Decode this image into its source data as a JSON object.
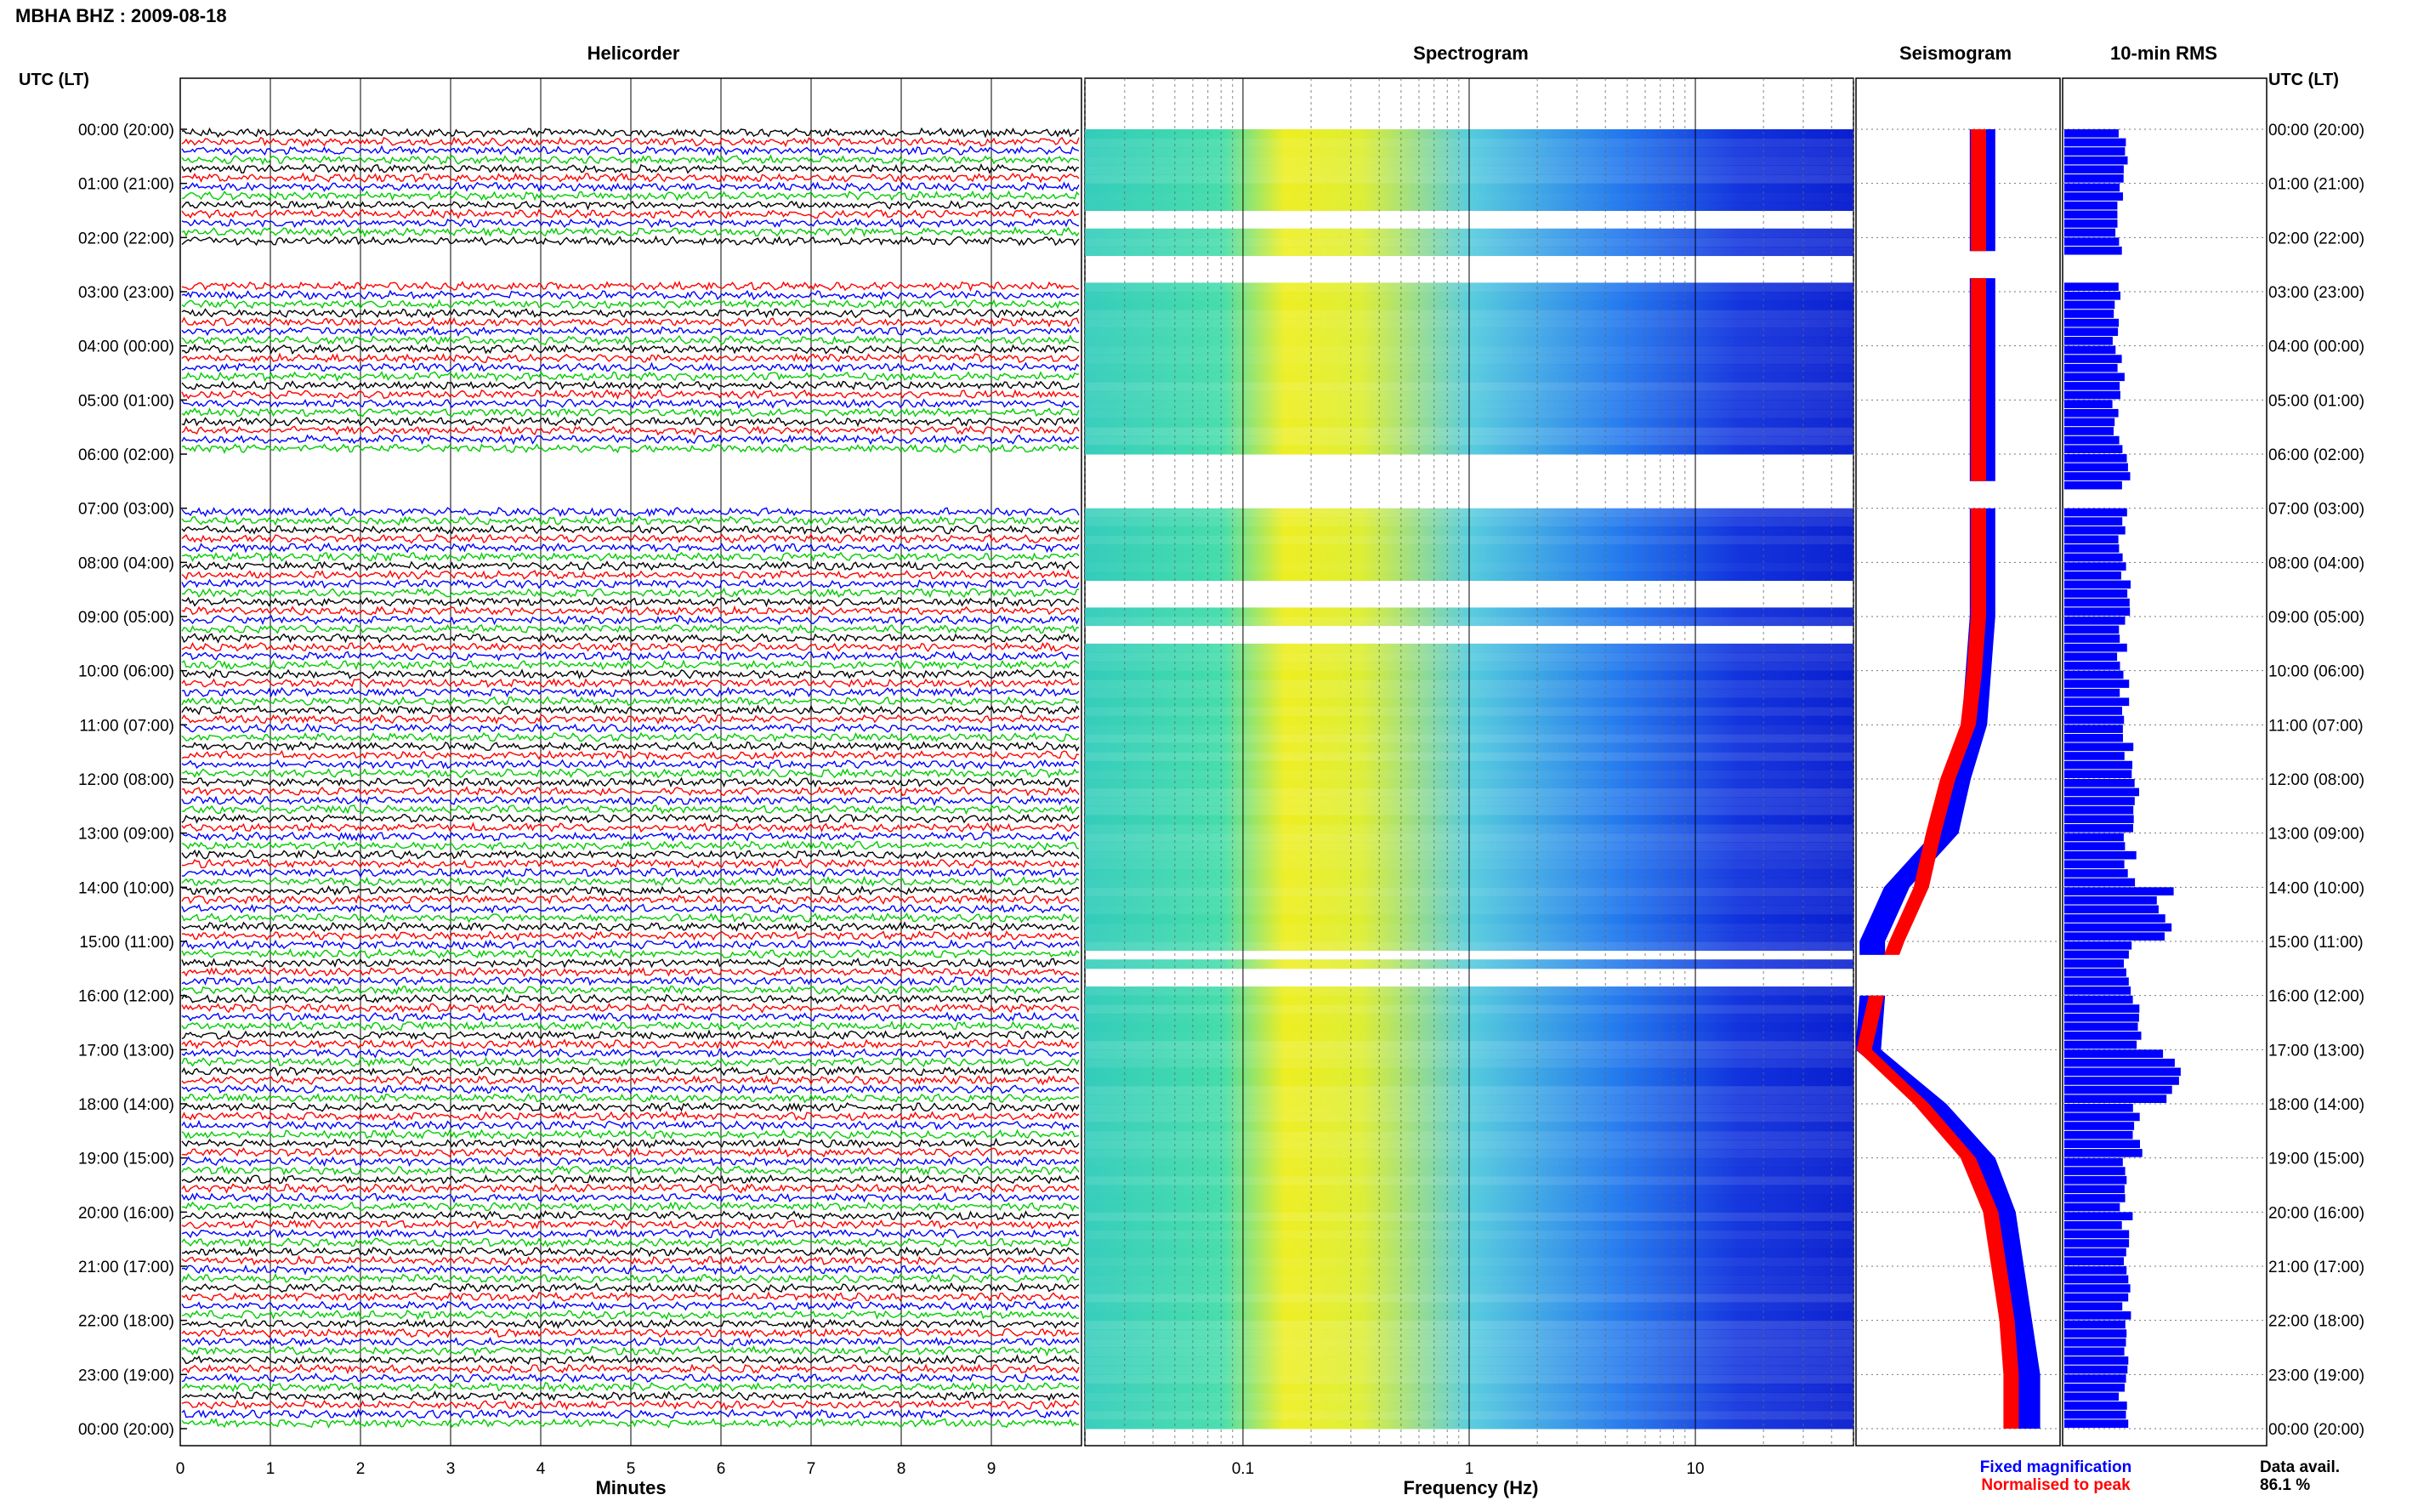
{
  "header": {
    "station_title": "MBHA BHZ : 2009-08-18",
    "time_label_left": "UTC (LT)",
    "time_label_right": "UTC (LT)"
  },
  "panels": {
    "helicorder": "Helicorder",
    "spectrogram": "Spectrogram",
    "seismogram": "Seismogram",
    "rms": "10-min RMS"
  },
  "hour_labels": [
    "00:00 (20:00)",
    "01:00 (21:00)",
    "02:00 (22:00)",
    "03:00 (23:00)",
    "04:00 (00:00)",
    "05:00 (01:00)",
    "06:00 (02:00)",
    "07:00 (03:00)",
    "08:00 (04:00)",
    "09:00 (05:00)",
    "10:00 (06:00)",
    "11:00 (07:00)",
    "12:00 (08:00)",
    "13:00 (09:00)",
    "14:00 (10:00)",
    "15:00 (11:00)",
    "16:00 (12:00)",
    "17:00 (13:00)",
    "18:00 (14:00)",
    "19:00 (15:00)",
    "20:00 (16:00)",
    "21:00 (17:00)",
    "22:00 (18:00)",
    "23:00 (19:00)",
    "00:00 (20:00)"
  ],
  "colors": {
    "trace_cycle": [
      "#000000",
      "#ff0000",
      "#0000ff",
      "#00cc00"
    ],
    "fixed_magnification": "#0000ff",
    "normalised_to_peak": "#ff0000",
    "rms_bar": "#0000ff"
  },
  "chart_data": [
    {
      "type": "line",
      "name": "helicorder",
      "title": "Helicorder",
      "xlabel": "Minutes",
      "x_ticks": [
        "0",
        "1",
        "2",
        "3",
        "4",
        "5",
        "6",
        "7",
        "8",
        "9"
      ],
      "xlim": [
        0,
        10
      ],
      "traces_per_hour": 6,
      "gaps_hours": [
        [
          2.1,
          2.7
        ],
        [
          6.0,
          6.9
        ]
      ]
    },
    {
      "type": "heatmap",
      "name": "spectrogram",
      "title": "Spectrogram",
      "xlabel": "Frequency (Hz)",
      "x_ticks": [
        "0.1",
        "1",
        "10"
      ],
      "x_scale": "log",
      "xlim": [
        0.02,
        50
      ],
      "gaps_hours": [
        [
          1.5,
          1.8
        ],
        [
          2.3,
          2.7
        ],
        [
          6.0,
          7.0
        ],
        [
          8.2,
          8.8
        ],
        [
          9.1,
          9.4
        ],
        [
          15.1,
          15.3
        ],
        [
          15.5,
          15.8
        ]
      ]
    },
    {
      "type": "area",
      "name": "seismogram",
      "title": "Seismogram",
      "legend": [
        "Fixed magnification",
        "Normalised to peak"
      ],
      "legend_position": "bottom",
      "hours": [
        0,
        1,
        2,
        3,
        4,
        5,
        6,
        7,
        8,
        9,
        10,
        11,
        12,
        13,
        14,
        15,
        16,
        17,
        18,
        19,
        20,
        21,
        22,
        23
      ],
      "fixed_level": [
        0.62,
        0.62,
        0.62,
        0.62,
        0.62,
        0.62,
        0.62,
        0.62,
        0.62,
        0.62,
        0.6,
        0.58,
        0.5,
        0.44,
        0.2,
        0.08,
        0.08,
        0.06,
        0.38,
        0.62,
        0.72,
        0.76,
        0.8,
        0.84
      ],
      "normalised_level": [
        0.6,
        0.6,
        0.6,
        0.6,
        0.6,
        0.6,
        0.6,
        0.6,
        0.6,
        0.6,
        0.58,
        0.55,
        0.45,
        0.38,
        0.32,
        0.2,
        0.1,
        0.04,
        0.32,
        0.55,
        0.66,
        0.7,
        0.74,
        0.76
      ]
    },
    {
      "type": "bar",
      "name": "rms",
      "title": "10-min RMS",
      "orientation": "horizontal",
      "hours": [
        0,
        1,
        2,
        3,
        4,
        5,
        6,
        7,
        8,
        9,
        10,
        11,
        12,
        13,
        14,
        15,
        16,
        17,
        18,
        19,
        20,
        21,
        22,
        23
      ],
      "values": [
        0.55,
        0.52,
        0.5,
        0.5,
        0.52,
        0.5,
        0.58,
        0.55,
        0.58,
        0.55,
        0.56,
        0.6,
        0.68,
        0.62,
        0.95,
        0.62,
        0.7,
        1.0,
        0.68,
        0.55,
        0.6,
        0.58,
        0.56,
        0.55
      ]
    }
  ],
  "footer": {
    "legend_fixed": "Fixed magnification",
    "legend_norm": "Normalised to peak",
    "data_avail_label": "Data avail.",
    "data_avail_value": "86.1 %"
  }
}
